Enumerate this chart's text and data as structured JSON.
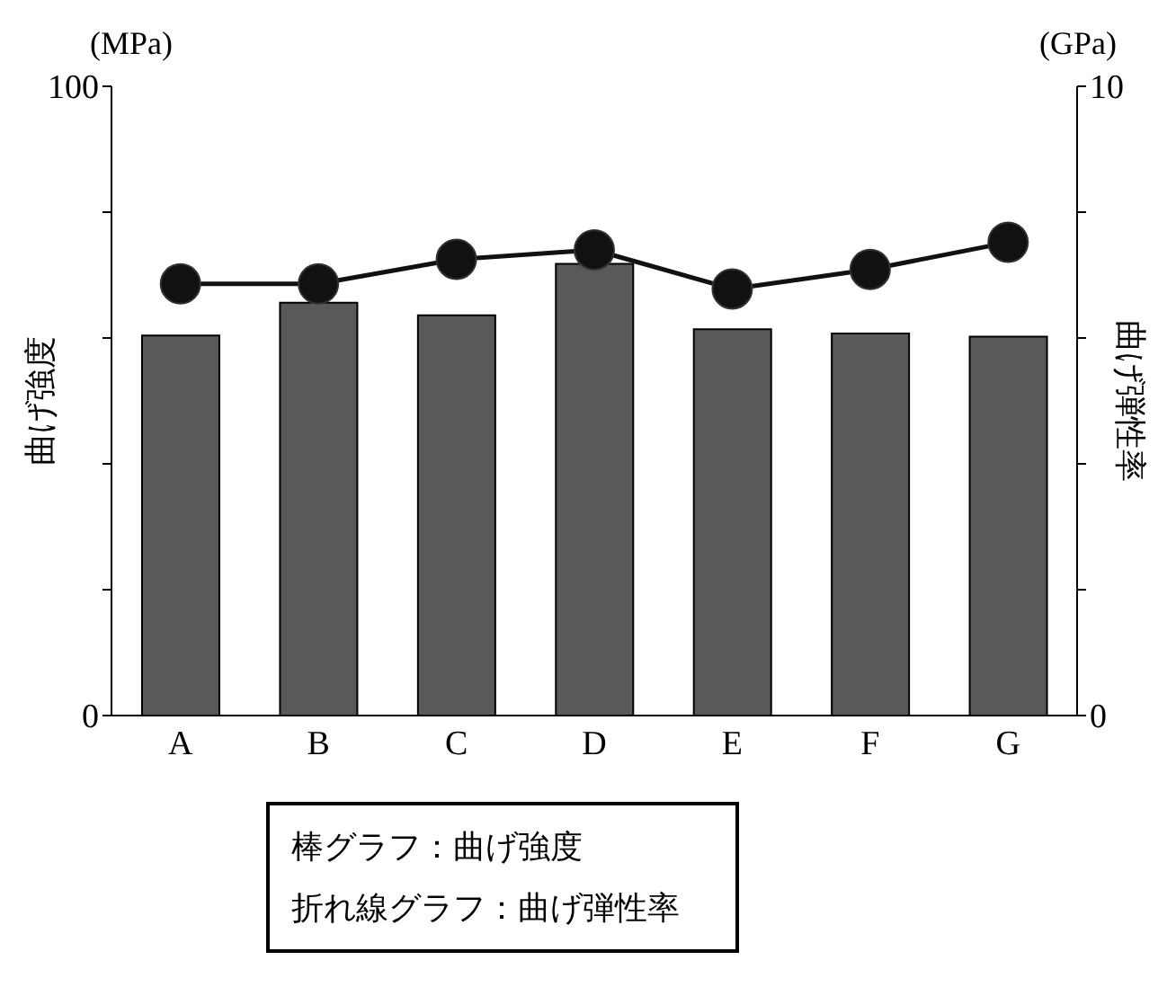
{
  "chart_data": {
    "type": "bar",
    "categories": [
      "A",
      "B",
      "C",
      "D",
      "E",
      "F",
      "G"
    ],
    "series": [
      {
        "color": "#595959",
        "values": [
          60.4,
          65.6,
          63.6,
          71.8,
          61.4,
          60.7,
          60.2
        ]
      },
      {
        "type": "line",
        "axis": "y2",
        "color": "#111111",
        "values": [
          6.86,
          6.86,
          7.25,
          7.4,
          6.78,
          7.09,
          7.52
        ]
      }
    ],
    "ylabel": "曲げ強度",
    "y2label": "曲げ弾性率",
    "ylim": [
      0,
      100
    ],
    "yticks": [
      0,
      {
        "value": 20,
        "label": null
      },
      {
        "value": 40,
        "label": null
      },
      {
        "value": 60,
        "label": null
      },
      {
        "value": 80,
        "label": null
      },
      100
    ],
    "y2lim": [
      0,
      10
    ],
    "y2ticks": [
      0,
      {
        "value": 2,
        "label": null
      },
      {
        "value": 4,
        "label": null
      },
      {
        "value": 6,
        "label": null
      },
      {
        "value": 8,
        "label": null
      },
      10
    ],
    "annotations": [
      "(MPa)",
      "(GPa)",
      "棒グラフ：曲げ強度",
      "折れ線グラフ：曲げ弾性率"
    ],
    "marker": "circle",
    "line_style": "solid",
    "grid": false,
    "legend": false
  }
}
